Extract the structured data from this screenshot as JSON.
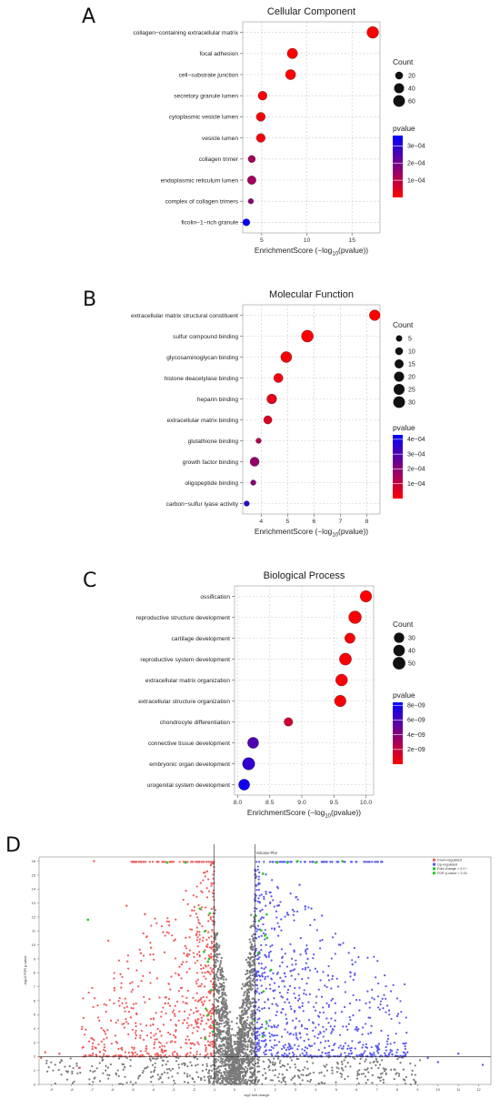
{
  "panel_letters": [
    "A",
    "B",
    "C",
    "D"
  ],
  "chart_data": [
    {
      "type": "scatter",
      "title": "Cellular Component",
      "xlabel": {
        "main": "EnrichmentScore (−log",
        "sub": "10",
        "end": "(pvalue))"
      },
      "xlim": [
        2.9,
        18.1
      ],
      "xticks": [
        5,
        10,
        15
      ],
      "categories": [
        "collagen−containing extracellular matrix",
        "focal adhesion",
        "cell−substrate junction",
        "secretory granule lumen",
        "cytoplasmic vesicle lumen",
        "vesicle lumen",
        "collagen trimer",
        "endoplasmic reticulum lumen",
        "complex of collagen trimers",
        "ficolin−1−rich granule"
      ],
      "x": [
        17.3,
        8.4,
        8.2,
        5.1,
        4.9,
        4.9,
        3.9,
        3.9,
        3.8,
        3.3
      ],
      "count": [
        62,
        45,
        42,
        30,
        30,
        29,
        16,
        27,
        6,
        15
      ],
      "pvalue": [
        5e-18,
        4e-09,
        6e-09,
        8e-06,
        1.3e-05,
        1.3e-05,
        0.00013,
        0.00013,
        0.00016,
        0.00035
      ],
      "size_legend": {
        "title": "Count",
        "values": [
          20,
          40,
          60
        ]
      },
      "color_legend": {
        "title": "pvalue",
        "ticks": [
          "3e−04",
          "2e−04",
          "1e−04"
        ],
        "tick_values": [
          0.0003,
          0.0002,
          0.0001
        ],
        "range": [
          0,
          0.00036
        ],
        "low_color": "#ff0000",
        "high_color": "#0000ff"
      }
    },
    {
      "type": "scatter",
      "title": "Molecular Function",
      "xlabel": {
        "main": "EnrichmentScore (−log",
        "sub": "10",
        "end": "(pvalue))"
      },
      "xlim": [
        3.3,
        8.5
      ],
      "xticks": [
        4,
        5,
        6,
        7,
        8
      ],
      "categories": [
        "extracellular matrix structural constituent",
        "sulfur compound binding",
        "glycosaminoglycan binding",
        "histone deacetylase binding",
        "heparin binding",
        "extracellular matrix binding",
        "glutathione binding",
        "growth factor binding",
        "oligopeptide binding",
        "carbon−sulfur lyase activity"
      ],
      "x": [
        8.3,
        5.75,
        4.95,
        4.65,
        4.4,
        4.25,
        3.9,
        3.75,
        3.7,
        3.45
      ],
      "count": [
        24,
        32,
        26,
        16,
        19,
        12,
        3,
        16,
        3,
        3
      ],
      "pvalue": [
        5e-09,
        1.8e-06,
        1.1e-05,
        2.2e-05,
        4e-05,
        5.6e-05,
        0.000126,
        0.00018,
        0.0002,
        0.00035
      ],
      "size_legend": {
        "title": "Count",
        "values": [
          5,
          10,
          15,
          20,
          25,
          30
        ]
      },
      "color_legend": {
        "title": "pvalue",
        "ticks": [
          "4e−04",
          "3e−04",
          "2e−04",
          "1e−04"
        ],
        "tick_values": [
          0.0004,
          0.0003,
          0.0002,
          0.0001
        ],
        "range": [
          0,
          0.00043
        ],
        "low_color": "#ff0000",
        "high_color": "#0000ff"
      }
    },
    {
      "type": "scatter",
      "title": "Biological Process",
      "xlabel": {
        "main": "EnrichmentScore (−log",
        "sub": "10",
        "end": "(pvalue))"
      },
      "xlim": [
        7.95,
        10.12
      ],
      "xticks": [
        "8.0",
        "8.5",
        "9.0",
        "9.5",
        "10.0"
      ],
      "categories": [
        "ossification",
        "reproductive structure development",
        "cartilage development",
        "reproductive system development",
        "extracellular matrix organization",
        "extracellular structure organization",
        "chondrocyte differentiation",
        "connective tissue development",
        "embryonic organ development",
        "urogenital system development"
      ],
      "x": [
        10.0,
        9.83,
        9.75,
        9.68,
        9.62,
        9.6,
        8.79,
        8.24,
        8.17,
        8.1
      ],
      "count": [
        41,
        52,
        31,
        46,
        44,
        41,
        19,
        37,
        49,
        37
      ],
      "pvalue": [
        1e-10,
        1.5e-10,
        1.8e-10,
        2.1e-10,
        2.4e-10,
        2.5e-10,
        1.6e-09,
        5.8e-09,
        6.8e-09,
        7.9e-09
      ],
      "size_legend": {
        "title": "Count",
        "values": [
          30,
          40,
          50
        ]
      },
      "color_legend": {
        "title": "pvalue",
        "ticks": [
          "8e−09",
          "6e−09",
          "4e−09",
          "2e−09"
        ],
        "tick_values": [
          8e-09,
          6e-09,
          4e-09,
          2e-09
        ],
        "range": [
          0,
          8.4e-09
        ],
        "low_color": "#ff0000",
        "high_color": "#0000ff"
      }
    },
    {
      "type": "scatter",
      "title": "Volcano Plot",
      "xlabel": "log2 fold change",
      "ylabel": "-log10 FDR p-value",
      "xlim": [
        -9.6,
        12.6
      ],
      "ylim": [
        0,
        16.3
      ],
      "xticks": [
        -9,
        -8,
        -7,
        -6,
        -5,
        -4,
        -3,
        -2,
        -1,
        0,
        1,
        2,
        3,
        4,
        5,
        6,
        7,
        8,
        9,
        10,
        11,
        12
      ],
      "yticks": [
        0,
        1,
        2,
        3,
        4,
        5,
        6,
        7,
        8,
        9,
        10,
        11,
        12,
        13,
        14,
        15,
        16
      ],
      "thresholds": {
        "fold_change_lines": [
          -1,
          1
        ],
        "pvalue_line": 2
      },
      "legend": [
        "Down-regulated",
        "Up-regulated",
        "Fold change > 2.0 !",
        "FDR p-value < 0.01"
      ],
      "colors": {
        "down": "#ef5a5a",
        "up": "#5858ec",
        "ns": "#7a7a7a",
        "special": "#22cc22"
      },
      "series_note_points": {
        "down": [
          [
            -9.5,
            1.9
          ],
          [
            -9.3,
            2.3
          ],
          [
            -8.6,
            2.2
          ],
          [
            -7.6,
            1.2
          ],
          [
            -6.9,
            16
          ],
          [
            -6.2,
            10.3
          ],
          [
            -5.9,
            6.9
          ],
          [
            -5.6,
            7.9
          ],
          [
            -5.3,
            12.8
          ],
          [
            -5.1,
            4.8
          ],
          [
            -4.6,
            9.4
          ],
          [
            -4.4,
            12.2
          ],
          [
            -4.1,
            9.8
          ],
          [
            -3.8,
            7.6
          ],
          [
            -3.4,
            5.8
          ],
          [
            -3.2,
            11.4
          ],
          [
            -2.9,
            3.4
          ],
          [
            -2.6,
            8.6
          ]
        ],
        "up": [
          [
            12.2,
            1.4
          ],
          [
            11.0,
            2.2
          ],
          [
            10.0,
            1.6
          ],
          [
            9.5,
            1.9
          ],
          [
            8.5,
            2.3
          ],
          [
            8.0,
            4.9
          ],
          [
            7.6,
            5.3
          ],
          [
            7.1,
            2.9
          ],
          [
            6.7,
            3.7
          ],
          [
            6.0,
            4.1
          ],
          [
            5.8,
            8.6
          ],
          [
            5.2,
            10.0
          ],
          [
            4.6,
            7.8
          ],
          [
            4.3,
            12.1
          ],
          [
            3.6,
            9.0
          ],
          [
            3.2,
            14.3
          ],
          [
            2.6,
            6.1
          ],
          [
            2.2,
            11.3
          ]
        ],
        "special": [
          [
            -3.3,
            15.9
          ],
          [
            -2.4,
            15.9
          ],
          [
            -1.5,
            9.5
          ],
          [
            -1.3,
            8.8
          ],
          [
            1.4,
            15.1
          ],
          [
            1.8,
            8.2
          ],
          [
            2.1,
            15.9
          ],
          [
            2.6,
            15.9
          ],
          [
            3.1,
            16.0
          ],
          [
            4.0,
            15.9
          ],
          [
            5.3,
            16.0
          ],
          [
            -7.2,
            11.8
          ],
          [
            1.6,
            10.5
          ],
          [
            -1.7,
            12.6
          ]
        ]
      }
    }
  ]
}
